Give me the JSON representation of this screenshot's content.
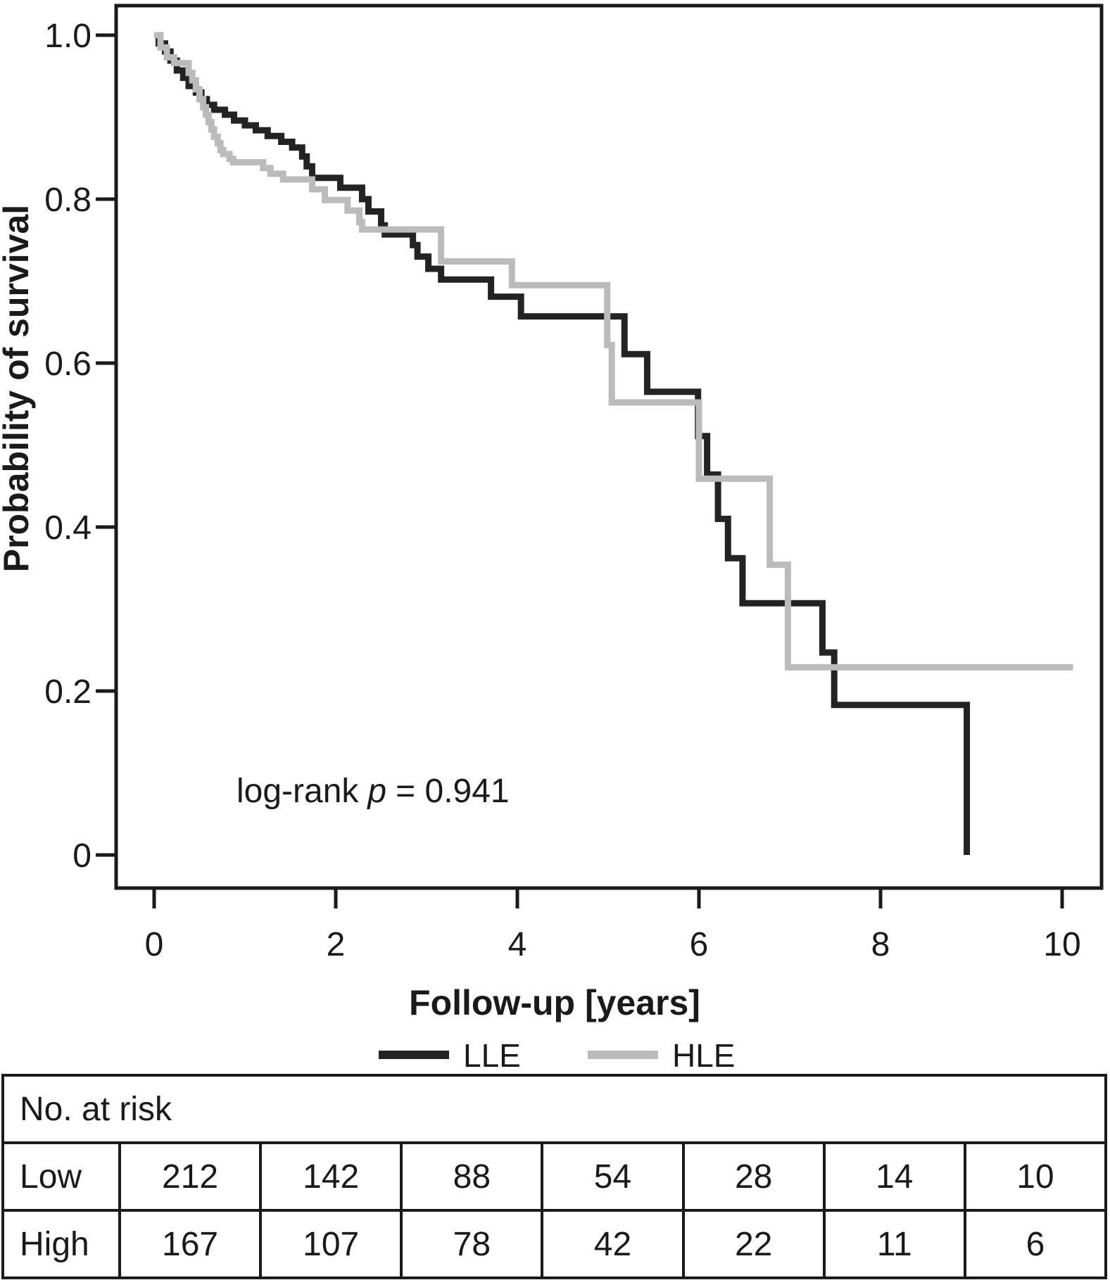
{
  "colors": {
    "lle_line": "#232323",
    "hle_line": "#bbbbbb",
    "text": "#1a1a1a",
    "background": "#ffffff"
  },
  "chart_data": {
    "type": "line",
    "subtype": "kaplan-meier-step",
    "title": "",
    "xlabel": "Follow-up [years]",
    "ylabel": "Probability of survival",
    "xlim": [
      0,
      10.5
    ],
    "ylim": [
      0,
      1.0
    ],
    "grid": false,
    "legend_position": "bottom",
    "annotation": {
      "prefix": "log-rank",
      "variable": "p",
      "suffix": "= 0.941"
    },
    "xticks": [
      {
        "v": 0,
        "label": "0"
      },
      {
        "v": 2,
        "label": "2"
      },
      {
        "v": 4,
        "label": "4"
      },
      {
        "v": 6,
        "label": "6"
      },
      {
        "v": 8,
        "label": "8"
      },
      {
        "v": 10,
        "label": "10"
      }
    ],
    "yticks": [
      {
        "v": 1.0,
        "label": "1.0"
      },
      {
        "v": 0.8,
        "label": "0.8"
      },
      {
        "v": 0.6,
        "label": "0.6"
      },
      {
        "v": 0.4,
        "label": "0.4"
      },
      {
        "v": 0.2,
        "label": "0.2"
      },
      {
        "v": 0.0,
        "label": "0"
      }
    ],
    "legend": [
      {
        "label": "LLE",
        "color": "#232323"
      },
      {
        "label": "HLE",
        "color": "#bbbbbb"
      }
    ],
    "series": [
      {
        "name": "LLE",
        "color": "#232323",
        "points": [
          [
            0,
            1.0
          ],
          [
            0.05,
            0.99
          ],
          [
            0.12,
            0.98
          ],
          [
            0.18,
            0.969
          ],
          [
            0.25,
            0.957
          ],
          [
            0.32,
            0.948
          ],
          [
            0.38,
            0.938
          ],
          [
            0.46,
            0.93
          ],
          [
            0.52,
            0.922
          ],
          [
            0.58,
            0.915
          ],
          [
            0.66,
            0.909
          ],
          [
            0.78,
            0.903
          ],
          [
            0.88,
            0.896
          ],
          [
            1.0,
            0.89
          ],
          [
            1.12,
            0.884
          ],
          [
            1.25,
            0.877
          ],
          [
            1.4,
            0.87
          ],
          [
            1.52,
            0.863
          ],
          [
            1.63,
            0.852
          ],
          [
            1.68,
            0.84
          ],
          [
            1.74,
            0.826
          ],
          [
            2.05,
            0.814
          ],
          [
            2.29,
            0.8
          ],
          [
            2.36,
            0.785
          ],
          [
            2.5,
            0.768
          ],
          [
            2.54,
            0.757
          ],
          [
            2.85,
            0.744
          ],
          [
            2.9,
            0.73
          ],
          [
            3.02,
            0.715
          ],
          [
            3.16,
            0.702
          ],
          [
            3.71,
            0.681
          ],
          [
            4.04,
            0.657
          ],
          [
            5.18,
            0.611
          ],
          [
            5.43,
            0.565
          ],
          [
            5.99,
            0.511
          ],
          [
            6.09,
            0.464
          ],
          [
            6.21,
            0.41
          ],
          [
            6.32,
            0.362
          ],
          [
            6.48,
            0.307
          ],
          [
            7.36,
            0.247
          ],
          [
            7.49,
            0.183
          ],
          [
            8.95,
            0.0
          ]
        ]
      },
      {
        "name": "HLE",
        "color": "#bbbbbb",
        "points": [
          [
            0,
            1.0
          ],
          [
            0.07,
            0.985
          ],
          [
            0.14,
            0.973
          ],
          [
            0.22,
            0.966
          ],
          [
            0.38,
            0.954
          ],
          [
            0.42,
            0.945
          ],
          [
            0.46,
            0.934
          ],
          [
            0.5,
            0.922
          ],
          [
            0.54,
            0.912
          ],
          [
            0.57,
            0.903
          ],
          [
            0.6,
            0.894
          ],
          [
            0.63,
            0.885
          ],
          [
            0.66,
            0.876
          ],
          [
            0.7,
            0.868
          ],
          [
            0.73,
            0.86
          ],
          [
            0.76,
            0.855
          ],
          [
            0.83,
            0.849
          ],
          [
            0.87,
            0.845
          ],
          [
            1.2,
            0.838
          ],
          [
            1.28,
            0.831
          ],
          [
            1.42,
            0.824
          ],
          [
            1.74,
            0.812
          ],
          [
            1.88,
            0.799
          ],
          [
            2.13,
            0.786
          ],
          [
            2.26,
            0.772
          ],
          [
            2.29,
            0.763
          ],
          [
            3.16,
            0.724
          ],
          [
            3.94,
            0.695
          ],
          [
            4.99,
            0.622
          ],
          [
            5.04,
            0.552
          ],
          [
            6.0,
            0.459
          ],
          [
            6.78,
            0.354
          ],
          [
            6.98,
            0.229
          ],
          [
            10.12,
            0.229
          ]
        ]
      }
    ]
  },
  "risk_table": {
    "header": "No. at risk",
    "rows": [
      {
        "label": "Low",
        "values": [
          212,
          142,
          88,
          54,
          28,
          14,
          10
        ]
      },
      {
        "label": "High",
        "values": [
          167,
          107,
          78,
          42,
          22,
          11,
          6
        ]
      }
    ]
  }
}
